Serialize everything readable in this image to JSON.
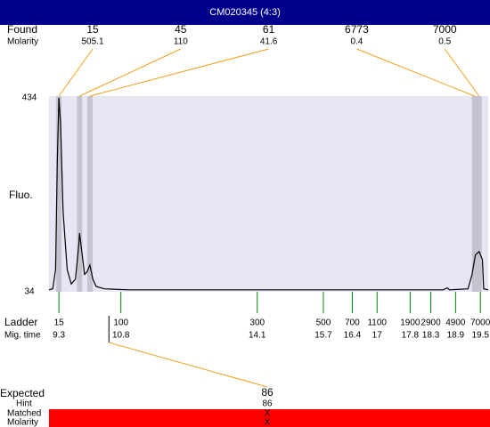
{
  "chart_data": {
    "type": "line",
    "title": "CM020345 (4:3)",
    "ylabel": "Fluo.",
    "ylim": [
      34,
      434
    ],
    "yticks": [
      34,
      434
    ],
    "xlim": [
      9.06,
      19.69
    ],
    "color": "#000000",
    "x": [
      9.06,
      9.15,
      9.22,
      9.26,
      9.3,
      9.34,
      9.4,
      9.5,
      9.6,
      9.7,
      9.78,
      9.8,
      9.85,
      9.92,
      9.98,
      10.05,
      10.12,
      10.2,
      10.4,
      11,
      13,
      16,
      18.6,
      18.7,
      18.75,
      19.2,
      19.3,
      19.38,
      19.47,
      19.55,
      19.58,
      19.69
    ],
    "values": [
      38,
      40,
      80,
      300,
      434,
      380,
      200,
      80,
      50,
      60,
      130,
      155,
      120,
      70,
      75,
      89,
      60,
      45,
      40,
      38,
      38,
      38,
      38,
      42,
      38,
      40,
      70,
      110,
      117,
      100,
      40,
      38
    ],
    "found": {
      "label": "Found",
      "sublabel": "Molarity",
      "peaks": [
        {
          "size": 15,
          "molarity": 505.1,
          "time": 9.3
        },
        {
          "size": 45,
          "molarity": 110,
          "time": 9.8
        },
        {
          "size": 61,
          "molarity": 41.6,
          "time": 10.05
        },
        {
          "size": 6773,
          "molarity": 0.4,
          "time": 19.36
        },
        {
          "size": 7000,
          "molarity": 0.5,
          "time": 19.47
        }
      ]
    },
    "ladder": {
      "label": "Ladder",
      "sublabel": "Mig. time",
      "markers": [
        {
          "size": 15,
          "time": 9.3
        },
        {
          "size": 100,
          "time": 10.8
        },
        {
          "size": 300,
          "time": 14.1
        },
        {
          "size": 500,
          "time": 15.7
        },
        {
          "size": 700,
          "time": 16.4
        },
        {
          "size": 1100,
          "time": 17
        },
        {
          "size": 1900,
          "time": 17.8
        },
        {
          "size": 2900,
          "time": 18.3
        },
        {
          "size": 4900,
          "time": 18.9
        },
        {
          "size": 7000,
          "time": 19.5
        }
      ]
    },
    "expected": {
      "label": "Expected",
      "value": 86,
      "time": 10.51,
      "hint_label": "Hint",
      "hint": 86,
      "matched_label": "Matched",
      "matched": "X",
      "molarity_label": "Molarity",
      "molarity": "X"
    }
  }
}
